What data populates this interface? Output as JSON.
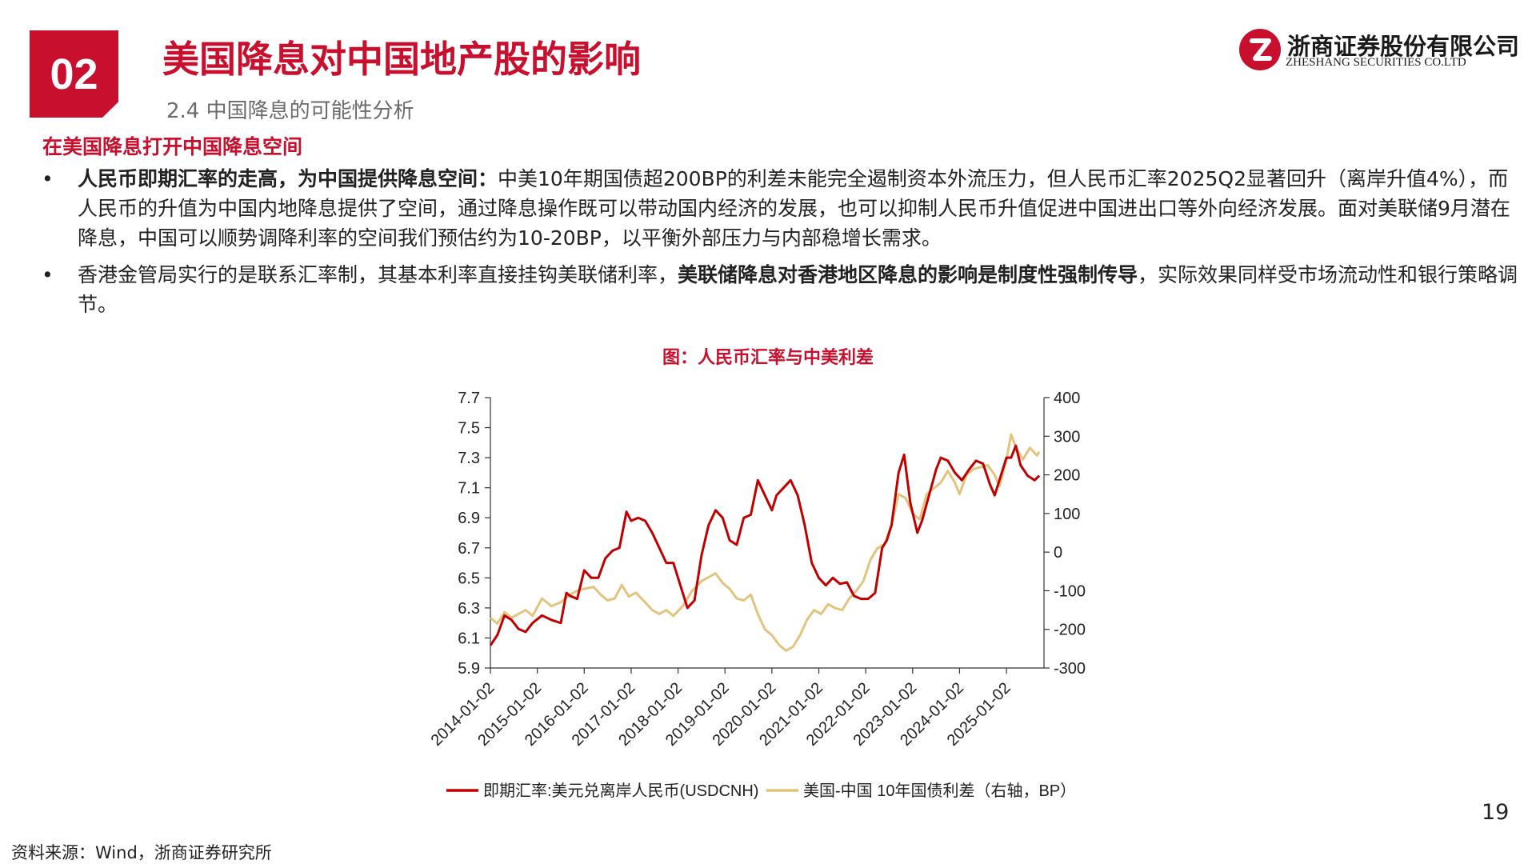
{
  "header": {
    "section_number": "02",
    "title": "美国降息对中国地产股的影响",
    "subtitle": "2.4 中国降息的可能性分析"
  },
  "logo": {
    "name_cn": "浙商证券股份有限公司",
    "name_en": "ZHESHANG SECURITIES CO.LTD"
  },
  "content": {
    "heading": "在美国降息打开中国降息空间",
    "bullet_symbol": "•",
    "bullets": [
      {
        "bold_lead": "人民币即期汇率的走高，为中国提供降息空间：",
        "text": "中美10年期国债超200BP的利差未能完全遏制资本外流压力，但人民币汇率2025Q2显著回升（离岸升值4%），而人民币的升值为中国内地降息提供了空间，通过降息操作既可以带动国内经济的发展，也可以抑制人民币升值促进中国进出口等外向经济发展。面对美联储9月潜在降息，中国可以顺势调降利率的空间我们预估约为10-20BP，以平衡外部压力与内部稳增长需求。"
      },
      {
        "text_before": "香港金管局实行的是联系汇率制，其基本利率直接挂钩美联储利率，",
        "bold_mid": "美联储降息对香港地区降息的影响是制度性强制传导",
        "text_after": "，实际效果同样受市场流动性和银行策略调节。"
      }
    ]
  },
  "chart_data": {
    "type": "line",
    "title": "图：人民币汇率与中美利差",
    "x_tick_labels": [
      "2014-01-02",
      "2015-01-02",
      "2016-01-02",
      "2017-01-02",
      "2018-01-02",
      "2019-01-02",
      "2020-01-02",
      "2021-01-02",
      "2022-01-02",
      "2023-01-02",
      "2024-01-02",
      "2025-01-02"
    ],
    "x_range": [
      2014.0,
      2025.8
    ],
    "y_left": {
      "range": [
        5.9,
        7.7
      ],
      "ticks": [
        "5.9",
        "6.1",
        "6.3",
        "6.5",
        "6.7",
        "6.9",
        "7.1",
        "7.3",
        "7.5",
        "7.7"
      ]
    },
    "y_right": {
      "range": [
        -300,
        400
      ],
      "ticks": [
        "-300",
        "-200",
        "-100",
        "0",
        "100",
        "200",
        "300",
        "400"
      ]
    },
    "grid": false,
    "legend_position": "bottom",
    "series": [
      {
        "name": "即期汇率:美元兑离岸人民币(USDCNH)",
        "axis": "left",
        "color": "#c00000",
        "x": [
          2014.0,
          2014.15,
          2014.3,
          2014.45,
          2014.6,
          2014.75,
          2014.9,
          2015.1,
          2015.3,
          2015.5,
          2015.62,
          2015.7,
          2015.85,
          2016.0,
          2016.15,
          2016.3,
          2016.45,
          2016.6,
          2016.75,
          2016.9,
          2017.0,
          2017.15,
          2017.3,
          2017.45,
          2017.6,
          2017.75,
          2017.9,
          2018.1,
          2018.2,
          2018.35,
          2018.5,
          2018.65,
          2018.8,
          2018.95,
          2019.1,
          2019.25,
          2019.4,
          2019.55,
          2019.7,
          2019.85,
          2020.0,
          2020.1,
          2020.25,
          2020.4,
          2020.55,
          2020.7,
          2020.85,
          2021.0,
          2021.15,
          2021.3,
          2021.45,
          2021.6,
          2021.75,
          2021.9,
          2022.05,
          2022.2,
          2022.35,
          2022.45,
          2022.55,
          2022.7,
          2022.82,
          2022.95,
          2023.1,
          2023.2,
          2023.35,
          2023.5,
          2023.6,
          2023.75,
          2023.9,
          2024.05,
          2024.2,
          2024.35,
          2024.5,
          2024.65,
          2024.75,
          2024.9,
          2025.0,
          2025.1,
          2025.2,
          2025.3,
          2025.45,
          2025.6,
          2025.7
        ],
        "values": [
          6.05,
          6.12,
          6.25,
          6.22,
          6.16,
          6.14,
          6.2,
          6.25,
          6.22,
          6.2,
          6.4,
          6.38,
          6.36,
          6.55,
          6.5,
          6.5,
          6.63,
          6.68,
          6.7,
          6.94,
          6.88,
          6.9,
          6.88,
          6.8,
          6.7,
          6.6,
          6.6,
          6.4,
          6.3,
          6.35,
          6.65,
          6.85,
          6.95,
          6.9,
          6.75,
          6.72,
          6.9,
          6.92,
          7.15,
          7.05,
          6.95,
          7.05,
          7.1,
          7.15,
          7.05,
          6.85,
          6.6,
          6.5,
          6.45,
          6.5,
          6.46,
          6.47,
          6.38,
          6.36,
          6.36,
          6.4,
          6.7,
          6.75,
          6.85,
          7.2,
          7.32,
          7.0,
          6.8,
          6.88,
          7.05,
          7.22,
          7.3,
          7.28,
          7.2,
          7.15,
          7.22,
          7.28,
          7.26,
          7.12,
          7.05,
          7.2,
          7.3,
          7.3,
          7.38,
          7.25,
          7.18,
          7.15,
          7.18
        ]
      },
      {
        "name": "美国-中国 10年国债利差（右轴，BP）",
        "axis": "right",
        "color": "#e3c47e",
        "x": [
          2014.0,
          2014.15,
          2014.3,
          2014.45,
          2014.6,
          2014.75,
          2014.9,
          2015.1,
          2015.3,
          2015.5,
          2015.7,
          2015.85,
          2016.0,
          2016.2,
          2016.35,
          2016.5,
          2016.65,
          2016.8,
          2016.95,
          2017.1,
          2017.3,
          2017.45,
          2017.6,
          2017.75,
          2017.9,
          2018.1,
          2018.3,
          2018.5,
          2018.65,
          2018.8,
          2018.95,
          2019.1,
          2019.25,
          2019.4,
          2019.55,
          2019.7,
          2019.85,
          2020.0,
          2020.15,
          2020.3,
          2020.45,
          2020.6,
          2020.75,
          2020.9,
          2021.05,
          2021.2,
          2021.35,
          2021.5,
          2021.65,
          2021.8,
          2021.95,
          2022.1,
          2022.25,
          2022.4,
          2022.55,
          2022.7,
          2022.85,
          2023.0,
          2023.15,
          2023.3,
          2023.45,
          2023.6,
          2023.75,
          2023.9,
          2024.0,
          2024.15,
          2024.3,
          2024.45,
          2024.6,
          2024.75,
          2024.85,
          2025.0,
          2025.1,
          2025.2,
          2025.35,
          2025.5,
          2025.65,
          2025.7
        ],
        "values": [
          -170,
          -185,
          -155,
          -170,
          -160,
          -150,
          -165,
          -120,
          -140,
          -130,
          -110,
          -100,
          -95,
          -90,
          -110,
          -125,
          -120,
          -85,
          -115,
          -105,
          -130,
          -150,
          -160,
          -150,
          -165,
          -140,
          -100,
          -75,
          -65,
          -55,
          -80,
          -95,
          -120,
          -125,
          -110,
          -160,
          -200,
          -215,
          -240,
          -255,
          -245,
          -215,
          -175,
          -150,
          -160,
          -135,
          -145,
          -150,
          -120,
          -100,
          -75,
          -20,
          10,
          20,
          70,
          150,
          140,
          100,
          85,
          150,
          165,
          180,
          210,
          180,
          150,
          200,
          215,
          220,
          225,
          200,
          170,
          240,
          305,
          270,
          240,
          270,
          250,
          260
        ]
      }
    ]
  },
  "footer": {
    "page_number": "19",
    "source": "资料来源：Wind，浙商证券研究所"
  },
  "colors": {
    "brand_red": "#c8102e",
    "fx_line": "#c00000",
    "spread_line": "#e3c47e"
  }
}
